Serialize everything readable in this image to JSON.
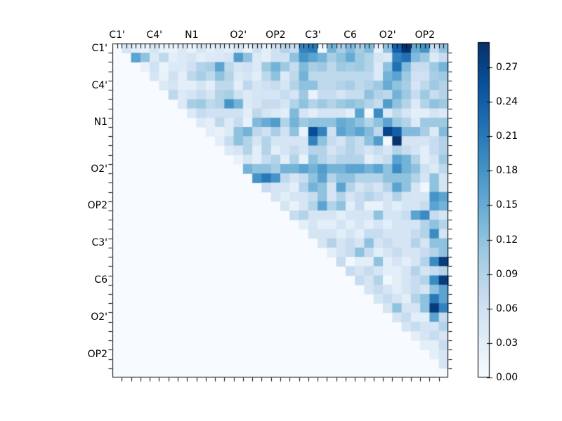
{
  "figure": {
    "background_color": "#ffffff",
    "frame_color": "#000000",
    "empty_cell_color": "#f7fbff"
  },
  "chart_data": {
    "type": "heatmap",
    "title": "",
    "xlabel": "",
    "ylabel": "",
    "triangle": "upper",
    "n_cells": 36,
    "colormap": "Blues",
    "colormap_anchors": [
      "#f7fbff",
      "#deebf7",
      "#c6dbef",
      "#9ecae1",
      "#6baed6",
      "#4292c6",
      "#2171b5",
      "#08519c",
      "#08306b"
    ],
    "vmin": 0.0,
    "vmax": 0.292,
    "axis_labels": [
      "C1'",
      "C4'",
      "N1",
      "O2'",
      "OP2",
      "C3'",
      "C6",
      "O2'",
      "OP2"
    ],
    "label_cell_indices": [
      0,
      4,
      8,
      13,
      17,
      21,
      25,
      29,
      33
    ],
    "colorbar_tick_labels": [
      "0.00",
      "0.03",
      "0.06",
      "0.09",
      "0.12",
      "0.15",
      "0.18",
      "0.21",
      "0.24",
      "0.27"
    ],
    "colorbar_tick_values": [
      0.0,
      0.03,
      0.06,
      0.09,
      0.12,
      0.15,
      0.18,
      0.21,
      0.24,
      0.27
    ],
    "matrix": [
      [
        0,
        0.05,
        0.03,
        0.02,
        0.05,
        0.02,
        0.02,
        0.04,
        0.02,
        0.05,
        0.03,
        0.04,
        0.03,
        0.05,
        0.02,
        0.06,
        0.03,
        0.06,
        0.09,
        0.07,
        0.2,
        0.21,
        0.01,
        0.14,
        0.1,
        0.13,
        0.1,
        0.13,
        0.02,
        0.12,
        0.24,
        0.29,
        0.15,
        0.18,
        0.07,
        0.12
      ],
      [
        0,
        0,
        0.16,
        0.12,
        0.04,
        0.08,
        0.03,
        0.04,
        0.05,
        0.03,
        0.04,
        0.04,
        0.05,
        0.17,
        0.12,
        0.04,
        0.03,
        0.06,
        0.06,
        0.12,
        0.18,
        0.16,
        0.14,
        0.1,
        0.12,
        0.15,
        0.11,
        0.09,
        0.05,
        0.04,
        0.2,
        0.22,
        0.13,
        0.11,
        0.04,
        0.07
      ],
      [
        0,
        0,
        0,
        0.02,
        0.06,
        0.02,
        0.04,
        0.04,
        0.06,
        0.09,
        0.1,
        0.16,
        0.08,
        0.05,
        0.06,
        0.04,
        0.11,
        0.14,
        0.11,
        0.07,
        0.13,
        0.1,
        0.11,
        0.08,
        0.11,
        0.1,
        0.11,
        0.09,
        0.04,
        0.12,
        0.22,
        0.13,
        0.07,
        0.07,
        0.11,
        0.14
      ],
      [
        0,
        0,
        0,
        0,
        0.05,
        0.02,
        0.06,
        0.03,
        0.08,
        0.1,
        0.08,
        0.12,
        0.09,
        0.04,
        0.05,
        0.03,
        0.08,
        0.12,
        0.04,
        0.08,
        0.14,
        0.08,
        0.08,
        0.08,
        0.08,
        0.08,
        0.08,
        0.08,
        0.04,
        0.14,
        0.16,
        0.11,
        0.06,
        0.06,
        0.1,
        0.11
      ],
      [
        0,
        0,
        0,
        0,
        0,
        0.04,
        0.05,
        0.03,
        0.03,
        0.05,
        0.03,
        0.08,
        0.08,
        0.03,
        0.08,
        0.05,
        0.06,
        0.07,
        0.05,
        0.09,
        0.12,
        0.12,
        0.08,
        0.08,
        0.09,
        0.1,
        0.08,
        0.09,
        0.11,
        0.15,
        0.12,
        0.1,
        0.05,
        0.08,
        0.11,
        0.09
      ],
      [
        0,
        0,
        0,
        0,
        0,
        0,
        0.08,
        0.04,
        0.05,
        0.07,
        0.05,
        0.09,
        0.1,
        0.06,
        0.04,
        0.05,
        0.05,
        0.05,
        0.07,
        0.05,
        0.11,
        0.02,
        0.07,
        0.07,
        0.05,
        0.07,
        0.07,
        0.12,
        0.09,
        0.08,
        0.14,
        0.11,
        0.07,
        0.11,
        0.07,
        0.09
      ],
      [
        0,
        0,
        0,
        0,
        0,
        0,
        0,
        0.04,
        0.1,
        0.11,
        0.08,
        0.09,
        0.18,
        0.14,
        0.04,
        0.05,
        0.07,
        0.07,
        0.05,
        0.09,
        0.12,
        0.09,
        0.11,
        0.09,
        0.11,
        0.12,
        0.11,
        0.09,
        0.07,
        0.17,
        0.12,
        0.09,
        0.04,
        0.09,
        0.12,
        0.11
      ],
      [
        0,
        0,
        0,
        0,
        0,
        0,
        0,
        0,
        0.04,
        0.07,
        0.06,
        0.06,
        0.06,
        0.06,
        0.03,
        0.08,
        0.05,
        0.04,
        0.03,
        0.13,
        0.05,
        0.03,
        0.05,
        0.05,
        0.05,
        0.03,
        0.16,
        0.01,
        0.19,
        0.04,
        0.08,
        0.05,
        0.03,
        0.03,
        0.05,
        0.04
      ],
      [
        0,
        0,
        0,
        0,
        0,
        0,
        0,
        0,
        0,
        0.04,
        0.03,
        0.08,
        0.04,
        0.07,
        0.02,
        0.13,
        0.15,
        0.17,
        0.09,
        0.14,
        0.11,
        0.12,
        0.12,
        0.12,
        0.15,
        0.14,
        0.12,
        0.09,
        0.12,
        0.16,
        0.11,
        0.09,
        0.04,
        0.11,
        0.11,
        0.11
      ],
      [
        0,
        0,
        0,
        0,
        0,
        0,
        0,
        0,
        0,
        0,
        0.03,
        0.02,
        0.04,
        0.12,
        0.14,
        0.08,
        0.06,
        0.1,
        0.06,
        0.12,
        0.02,
        0.26,
        0.2,
        0.06,
        0.16,
        0.14,
        0.16,
        0.13,
        0.08,
        0.27,
        0.24,
        0.13,
        0.13,
        0.1,
        0.04,
        0.13
      ],
      [
        0,
        0,
        0,
        0,
        0,
        0,
        0,
        0,
        0,
        0,
        0,
        0.03,
        0.07,
        0.12,
        0.09,
        0.05,
        0.09,
        0.05,
        0.05,
        0.05,
        0.05,
        0.2,
        0.12,
        0.07,
        0.05,
        0.09,
        0.07,
        0.12,
        0.17,
        0.01,
        0.29,
        0.05,
        0.05,
        0.05,
        0.07,
        0.09
      ],
      [
        0,
        0,
        0,
        0,
        0,
        0,
        0,
        0,
        0,
        0,
        0,
        0,
        0.04,
        0.05,
        0.09,
        0.03,
        0.09,
        0.03,
        0.05,
        0.07,
        0.05,
        0.09,
        0.09,
        0.05,
        0.07,
        0.09,
        0.07,
        0.05,
        0.07,
        0.05,
        0.09,
        0.07,
        0.05,
        0.03,
        0.07,
        0.09
      ],
      [
        0,
        0,
        0,
        0,
        0,
        0,
        0,
        0,
        0,
        0,
        0,
        0,
        0,
        0.02,
        0.05,
        0.03,
        0.07,
        0.09,
        0.03,
        0.09,
        0.02,
        0.12,
        0.09,
        0.07,
        0.09,
        0.09,
        0.09,
        0.03,
        0.05,
        0.07,
        0.16,
        0.14,
        0.09,
        0.03,
        0.05,
        0.11
      ],
      [
        0,
        0,
        0,
        0,
        0,
        0,
        0,
        0,
        0,
        0,
        0,
        0,
        0,
        0,
        0.14,
        0.12,
        0.12,
        0.1,
        0.14,
        0.14,
        0.16,
        0.14,
        0.17,
        0.14,
        0.14,
        0.16,
        0.16,
        0.14,
        0.16,
        0.12,
        0.19,
        0.14,
        0.12,
        0.06,
        0.04,
        0.08
      ],
      [
        0,
        0,
        0,
        0,
        0,
        0,
        0,
        0,
        0,
        0,
        0,
        0,
        0,
        0,
        0,
        0.18,
        0.21,
        0.18,
        0.08,
        0.05,
        0.07,
        0.12,
        0.16,
        0.09,
        0.12,
        0.12,
        0.09,
        0.09,
        0.09,
        0.12,
        0.12,
        0.12,
        0.09,
        0.05,
        0.12,
        0.05
      ],
      [
        0,
        0,
        0,
        0,
        0,
        0,
        0,
        0,
        0,
        0,
        0,
        0,
        0,
        0,
        0,
        0,
        0.07,
        0.05,
        0.05,
        0.03,
        0.09,
        0.14,
        0.12,
        0.05,
        0.16,
        0.09,
        0.05,
        0.07,
        0.05,
        0.09,
        0.16,
        0.12,
        0.05,
        0.01,
        0.12,
        0.05
      ],
      [
        0,
        0,
        0,
        0,
        0,
        0,
        0,
        0,
        0,
        0,
        0,
        0,
        0,
        0,
        0,
        0,
        0,
        0.05,
        0.03,
        0.05,
        0.05,
        0.07,
        0.12,
        0.05,
        0.09,
        0.05,
        0.07,
        0.09,
        0.07,
        0.05,
        0.09,
        0.05,
        0.05,
        0.05,
        0.18,
        0.16
      ],
      [
        0,
        0,
        0,
        0,
        0,
        0,
        0,
        0,
        0,
        0,
        0,
        0,
        0,
        0,
        0,
        0,
        0,
        0,
        0.05,
        0.02,
        0.05,
        0.09,
        0.16,
        0.09,
        0.12,
        0.03,
        0.07,
        0.02,
        0.02,
        0.05,
        0.03,
        0.05,
        0.05,
        0.07,
        0.16,
        0.14
      ],
      [
        0,
        0,
        0,
        0,
        0,
        0,
        0,
        0,
        0,
        0,
        0,
        0,
        0,
        0,
        0,
        0,
        0,
        0,
        0,
        0.07,
        0.09,
        0.05,
        0.05,
        0.05,
        0.03,
        0.05,
        0.05,
        0.05,
        0.12,
        0.05,
        0.05,
        0.07,
        0.16,
        0.19,
        0.07,
        0.05
      ],
      [
        0,
        0,
        0,
        0,
        0,
        0,
        0,
        0,
        0,
        0,
        0,
        0,
        0,
        0,
        0,
        0,
        0,
        0,
        0,
        0,
        0.03,
        0.05,
        0.03,
        0.03,
        0.05,
        0.03,
        0.05,
        0.03,
        0.05,
        0.03,
        0.05,
        0.05,
        0.05,
        0.09,
        0.12,
        0.09
      ],
      [
        0,
        0,
        0,
        0,
        0,
        0,
        0,
        0,
        0,
        0,
        0,
        0,
        0,
        0,
        0,
        0,
        0,
        0,
        0,
        0,
        0,
        0.05,
        0.05,
        0.05,
        0.03,
        0.05,
        0.03,
        0.07,
        0.07,
        0.05,
        0.05,
        0.05,
        0.07,
        0.09,
        0.19,
        0.05
      ],
      [
        0,
        0,
        0,
        0,
        0,
        0,
        0,
        0,
        0,
        0,
        0,
        0,
        0,
        0,
        0,
        0,
        0,
        0,
        0,
        0,
        0,
        0,
        0.05,
        0.09,
        0.05,
        0.07,
        0.05,
        0.12,
        0.05,
        0.07,
        0.05,
        0.05,
        0.09,
        0.05,
        0.12,
        0.12
      ],
      [
        0,
        0,
        0,
        0,
        0,
        0,
        0,
        0,
        0,
        0,
        0,
        0,
        0,
        0,
        0,
        0,
        0,
        0,
        0,
        0,
        0,
        0,
        0,
        0.03,
        0.05,
        0.07,
        0.12,
        0.07,
        0.03,
        0.05,
        0.07,
        0.05,
        0.05,
        0.07,
        0.09,
        0.12
      ],
      [
        0,
        0,
        0,
        0,
        0,
        0,
        0,
        0,
        0,
        0,
        0,
        0,
        0,
        0,
        0,
        0,
        0,
        0,
        0,
        0,
        0,
        0,
        0,
        0,
        0.07,
        0.01,
        0.03,
        0.03,
        0.12,
        0.03,
        0.05,
        0.03,
        0.05,
        0.09,
        0.19,
        0.28
      ],
      [
        0,
        0,
        0,
        0,
        0,
        0,
        0,
        0,
        0,
        0,
        0,
        0,
        0,
        0,
        0,
        0,
        0,
        0,
        0,
        0,
        0,
        0,
        0,
        0,
        0,
        0.07,
        0.05,
        0.07,
        0.05,
        0.03,
        0.03,
        0.05,
        0.09,
        0.05,
        0.07,
        0.09
      ],
      [
        0,
        0,
        0,
        0,
        0,
        0,
        0,
        0,
        0,
        0,
        0,
        0,
        0,
        0,
        0,
        0,
        0,
        0,
        0,
        0,
        0,
        0,
        0,
        0,
        0,
        0,
        0.07,
        0.05,
        0.09,
        0.01,
        0.03,
        0.05,
        0.07,
        0.09,
        0.19,
        0.28
      ],
      [
        0,
        0,
        0,
        0,
        0,
        0,
        0,
        0,
        0,
        0,
        0,
        0,
        0,
        0,
        0,
        0,
        0,
        0,
        0,
        0,
        0,
        0,
        0,
        0,
        0,
        0,
        0,
        0.05,
        0.07,
        0.05,
        0.03,
        0.05,
        0.07,
        0.05,
        0.12,
        0.16
      ],
      [
        0,
        0,
        0,
        0,
        0,
        0,
        0,
        0,
        0,
        0,
        0,
        0,
        0,
        0,
        0,
        0,
        0,
        0,
        0,
        0,
        0,
        0,
        0,
        0,
        0,
        0,
        0,
        0,
        0.05,
        0.07,
        0.05,
        0.03,
        0.09,
        0.12,
        0.21,
        0.16
      ],
      [
        0,
        0,
        0,
        0,
        0,
        0,
        0,
        0,
        0,
        0,
        0,
        0,
        0,
        0,
        0,
        0,
        0,
        0,
        0,
        0,
        0,
        0,
        0,
        0,
        0,
        0,
        0,
        0,
        0,
        0.05,
        0.12,
        0.05,
        0.05,
        0.12,
        0.28,
        0.2
      ],
      [
        0,
        0,
        0,
        0,
        0,
        0,
        0,
        0,
        0,
        0,
        0,
        0,
        0,
        0,
        0,
        0,
        0,
        0,
        0,
        0,
        0,
        0,
        0,
        0,
        0,
        0,
        0,
        0,
        0,
        0,
        0.05,
        0.07,
        0.03,
        0.03,
        0.16,
        0.07
      ],
      [
        0,
        0,
        0,
        0,
        0,
        0,
        0,
        0,
        0,
        0,
        0,
        0,
        0,
        0,
        0,
        0,
        0,
        0,
        0,
        0,
        0,
        0,
        0,
        0,
        0,
        0,
        0,
        0,
        0,
        0,
        0,
        0.05,
        0.07,
        0.05,
        0.05,
        0.09
      ],
      [
        0,
        0,
        0,
        0,
        0,
        0,
        0,
        0,
        0,
        0,
        0,
        0,
        0,
        0,
        0,
        0,
        0,
        0,
        0,
        0,
        0,
        0,
        0,
        0,
        0,
        0,
        0,
        0,
        0,
        0,
        0,
        0,
        0.03,
        0.05,
        0.07,
        0.05
      ],
      [
        0,
        0,
        0,
        0,
        0,
        0,
        0,
        0,
        0,
        0,
        0,
        0,
        0,
        0,
        0,
        0,
        0,
        0,
        0,
        0,
        0,
        0,
        0,
        0,
        0,
        0,
        0,
        0,
        0,
        0,
        0,
        0,
        0,
        0.03,
        0.03,
        0.07
      ],
      [
        0,
        0,
        0,
        0,
        0,
        0,
        0,
        0,
        0,
        0,
        0,
        0,
        0,
        0,
        0,
        0,
        0,
        0,
        0,
        0,
        0,
        0,
        0,
        0,
        0,
        0,
        0,
        0,
        0,
        0,
        0,
        0,
        0,
        0,
        0.03,
        0.05
      ],
      [
        0,
        0,
        0,
        0,
        0,
        0,
        0,
        0,
        0,
        0,
        0,
        0,
        0,
        0,
        0,
        0,
        0,
        0,
        0,
        0,
        0,
        0,
        0,
        0,
        0,
        0,
        0,
        0,
        0,
        0,
        0,
        0,
        0,
        0,
        0,
        0.05
      ],
      [
        0,
        0,
        0,
        0,
        0,
        0,
        0,
        0,
        0,
        0,
        0,
        0,
        0,
        0,
        0,
        0,
        0,
        0,
        0,
        0,
        0,
        0,
        0,
        0,
        0,
        0,
        0,
        0,
        0,
        0,
        0,
        0,
        0,
        0,
        0,
        0
      ]
    ]
  }
}
